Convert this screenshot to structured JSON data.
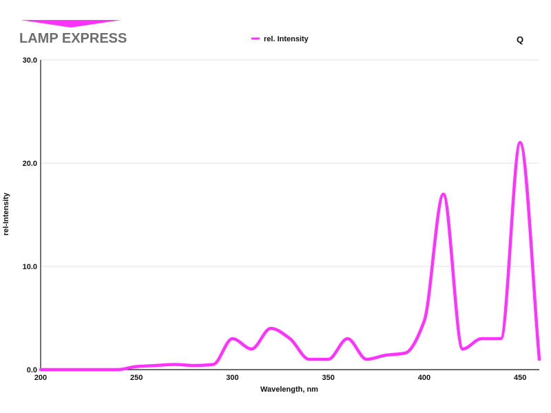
{
  "brand": {
    "name": "LAMP EXPRESS",
    "accent": "#ff33ff"
  },
  "corner_label": "Q",
  "chart_data": {
    "type": "line",
    "xlabel": "Wavelength, nm",
    "ylabel": "rel-Intensity",
    "xlim": [
      200,
      460
    ],
    "ylim": [
      0,
      30
    ],
    "x_ticks": [
      200,
      250,
      300,
      350,
      400,
      450
    ],
    "y_ticks": [
      "0.0",
      "10.0",
      "20.0",
      "30.0"
    ],
    "grid": "horizontal",
    "legend_position": "top-center",
    "series": [
      {
        "name": "rel. Intensity",
        "color": "#ff33ff",
        "x": [
          200,
          210,
          220,
          230,
          240,
          250,
          260,
          270,
          280,
          290,
          300,
          310,
          320,
          330,
          340,
          350,
          360,
          370,
          380,
          390,
          400,
          410,
          420,
          430,
          440,
          450,
          460
        ],
        "y": [
          0,
          0,
          0,
          0,
          0,
          0.3,
          0.4,
          0.5,
          0.4,
          0.5,
          3.0,
          2.0,
          4.0,
          3.0,
          1.0,
          1.0,
          3.0,
          1.0,
          1.4,
          1.6,
          4.7,
          17.0,
          2.0,
          3.0,
          3.0,
          22.0,
          1.0
        ]
      }
    ]
  }
}
